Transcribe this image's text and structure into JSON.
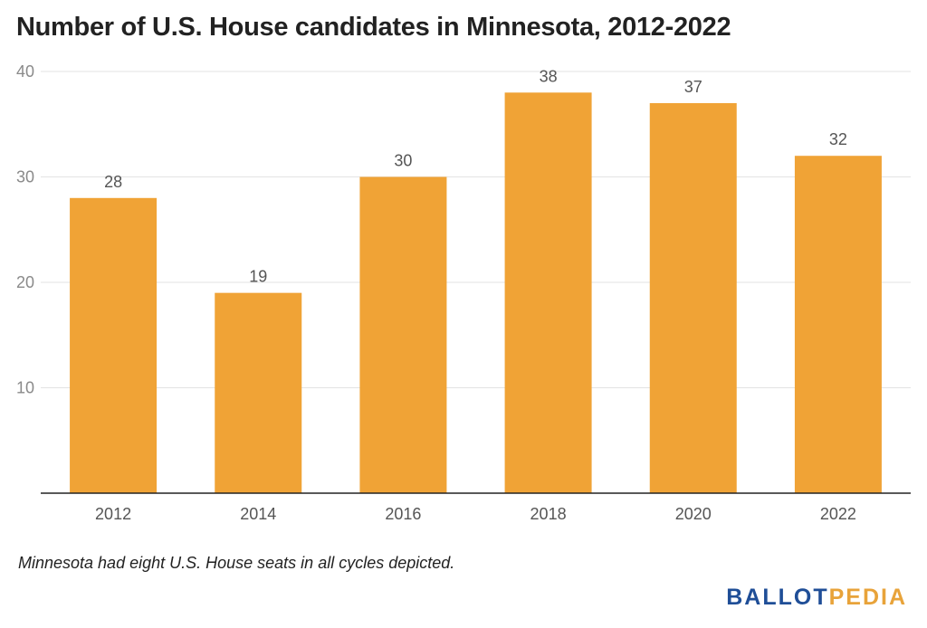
{
  "chart_data": {
    "type": "bar",
    "title": "Number of U.S. House candidates in Minnesota, 2012-2022",
    "categories": [
      "2012",
      "2014",
      "2016",
      "2018",
      "2020",
      "2022"
    ],
    "values": [
      28,
      19,
      30,
      38,
      37,
      32
    ],
    "ylim": [
      0,
      40
    ],
    "yticks": [
      "10",
      "20",
      "30",
      "40"
    ],
    "xlabel": "",
    "ylabel": "",
    "grid": true,
    "legend": "none",
    "bar_color": "#f0a336",
    "data_labels": true
  },
  "footnote": "Minnesota had eight U.S. House seats in all cycles depicted.",
  "logo": {
    "part1": "BALLOT",
    "part2": "PEDIA",
    "color1": "#1f4e97",
    "color2": "#e8a33a"
  }
}
